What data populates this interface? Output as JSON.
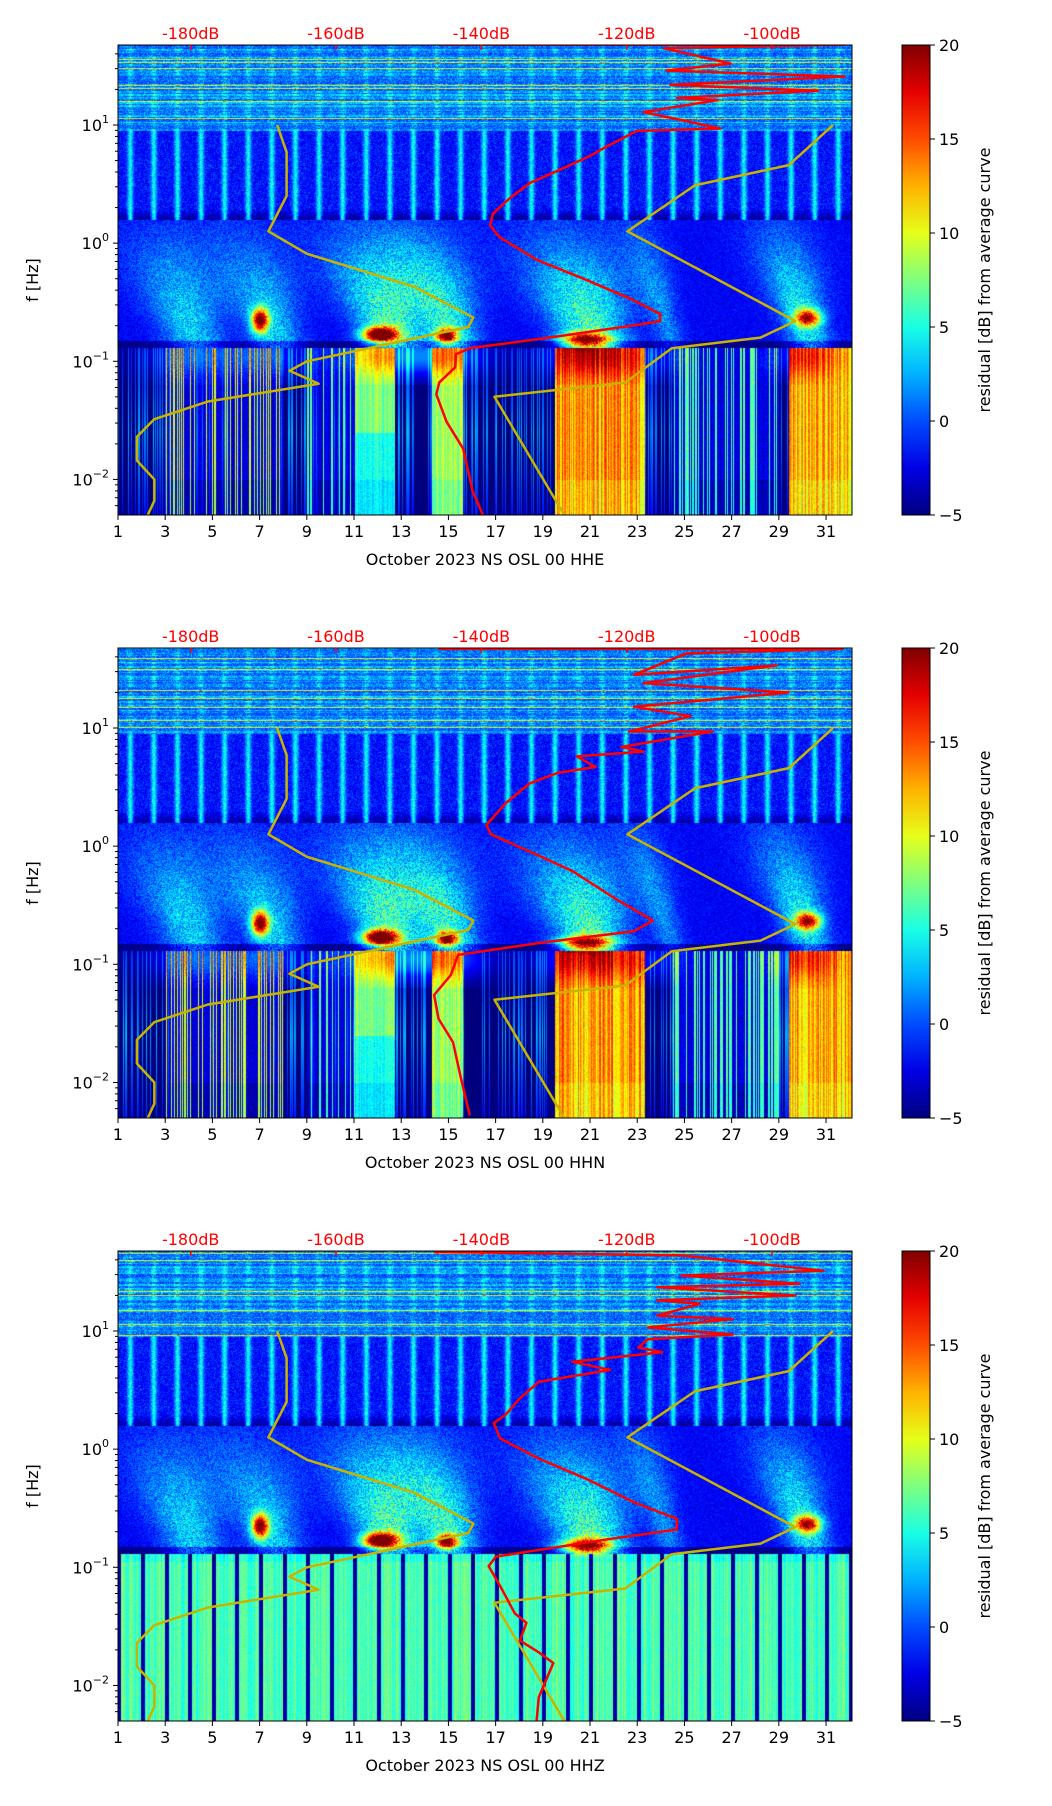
{
  "chart_data": [
    {
      "type": "heatmap",
      "title": "",
      "xlabel": "October 2023 NS OSL 00 HHE",
      "ylabel": "f [Hz]",
      "channel": "HHE",
      "x_ticks": [
        "1",
        "3",
        "5",
        "7",
        "9",
        "11",
        "13",
        "15",
        "17",
        "19",
        "21",
        "23",
        "25",
        "27",
        "29",
        "31"
      ],
      "xlim_days": [
        1,
        32.1
      ],
      "ylim_hz": [
        0.005,
        47.5
      ],
      "y_ticks": [
        {
          "base": "10",
          "exp": "1"
        },
        {
          "base": "10",
          "exp": "0"
        },
        {
          "base": "10",
          "exp": "−1"
        },
        {
          "base": "10",
          "exp": "−2"
        }
      ],
      "top_axis": {
        "ticks": [
          "-180dB",
          "-160dB",
          "-140dB",
          "-120dB",
          "-100dB"
        ],
        "values_db": [
          -180,
          -160,
          -140,
          -120,
          -100
        ],
        "range_db": [
          -190,
          -89
        ],
        "color": "#ff0000"
      },
      "colorbar": {
        "label": "residual [dB] from average curve",
        "range": [
          -5,
          20
        ],
        "ticks": [
          "20",
          "15",
          "10",
          "5",
          "0",
          "−5"
        ],
        "tick_values": [
          20,
          15,
          10,
          5,
          0,
          -5
        ],
        "colormap": "jet"
      },
      "red_curve_db_vs_log10f": [
        [
          -145.8,
          1.68
        ],
        [
          -90,
          1.68
        ],
        [
          -114.9,
          1.65
        ],
        [
          -105.7,
          1.52
        ],
        [
          -114.5,
          1.46
        ],
        [
          -90,
          1.41
        ],
        [
          -114.0,
          1.34
        ],
        [
          -93.7,
          1.29
        ],
        [
          -113.1,
          1.23
        ],
        [
          -107.5,
          1.21
        ],
        [
          -117.7,
          1.11
        ],
        [
          -107.1,
          0.97
        ],
        [
          -118.6,
          0.95
        ],
        [
          -122.7,
          0.82
        ],
        [
          -125.0,
          0.74
        ],
        [
          -129.6,
          0.61
        ],
        [
          -133.3,
          0.51
        ],
        [
          -136.1,
          0.38
        ],
        [
          -138.4,
          0.25
        ],
        [
          -138.8,
          0.15
        ],
        [
          -137.5,
          0.05
        ],
        [
          -132.4,
          -0.14
        ],
        [
          -126.0,
          -0.3
        ],
        [
          -119.5,
          -0.47
        ],
        [
          -115.4,
          -0.6
        ],
        [
          -115.4,
          -0.66
        ],
        [
          -119.5,
          -0.7
        ],
        [
          -129.6,
          -0.79
        ],
        [
          -141.6,
          -0.89
        ],
        [
          -143.5,
          -0.94
        ],
        [
          -143.6,
          -1.05
        ],
        [
          -145.8,
          -1.18
        ],
        [
          -146.2,
          -1.28
        ],
        [
          -144.8,
          -1.51
        ],
        [
          -142.5,
          -1.74
        ],
        [
          -141.2,
          -2.1
        ],
        [
          -139.8,
          -2.3
        ]
      ]
    },
    {
      "type": "heatmap",
      "title": "",
      "xlabel": "October 2023 NS OSL 00 HHN",
      "ylabel": "f [Hz]",
      "channel": "HHN",
      "x_ticks": [
        "1",
        "3",
        "5",
        "7",
        "9",
        "11",
        "13",
        "15",
        "17",
        "19",
        "21",
        "23",
        "25",
        "27",
        "29",
        "31"
      ],
      "xlim_days": [
        1,
        32.1
      ],
      "ylim_hz": [
        0.005,
        47.5
      ],
      "y_ticks": [
        {
          "base": "10",
          "exp": "1"
        },
        {
          "base": "10",
          "exp": "0"
        },
        {
          "base": "10",
          "exp": "−1"
        },
        {
          "base": "10",
          "exp": "−2"
        }
      ],
      "top_axis": {
        "ticks": [
          "-180dB",
          "-160dB",
          "-140dB",
          "-120dB",
          "-100dB"
        ],
        "values_db": [
          -180,
          -160,
          -140,
          -120,
          -100
        ],
        "range_db": [
          -190,
          -89
        ],
        "color": "#ff0000"
      },
      "colorbar": {
        "label": "residual [dB] from average curve",
        "range": [
          -5,
          20
        ],
        "ticks": [
          "20",
          "15",
          "10",
          "5",
          "0",
          "−5"
        ],
        "tick_values": [
          20,
          15,
          10,
          5,
          0,
          -5
        ],
        "colormap": "jet"
      },
      "red_curve_db_vs_log10f": [
        [
          -145.9,
          1.67
        ],
        [
          -90.3,
          1.67
        ],
        [
          -111.8,
          1.63
        ],
        [
          -119.0,
          1.45
        ],
        [
          -99.4,
          1.53
        ],
        [
          -117.7,
          1.38
        ],
        [
          -97.8,
          1.3
        ],
        [
          -119.0,
          1.18
        ],
        [
          -111.2,
          1.1
        ],
        [
          -119.7,
          0.97
        ],
        [
          -108.2,
          0.97
        ],
        [
          -120.7,
          0.84
        ],
        [
          -117.7,
          0.8
        ],
        [
          -126.9,
          0.76
        ],
        [
          -124.3,
          0.67
        ],
        [
          -129.5,
          0.62
        ],
        [
          -133.4,
          0.53
        ],
        [
          -136.7,
          0.36
        ],
        [
          -139.3,
          0.18
        ],
        [
          -138.7,
          0.1
        ],
        [
          -132.1,
          -0.08
        ],
        [
          -127.5,
          -0.21
        ],
        [
          -121.7,
          -0.44
        ],
        [
          -116.4,
          -0.63
        ],
        [
          -119.0,
          -0.72
        ],
        [
          -132.1,
          -0.82
        ],
        [
          -143.2,
          -0.92
        ],
        [
          -144.2,
          -1.09
        ],
        [
          -146.5,
          -1.26
        ],
        [
          -145.9,
          -1.46
        ],
        [
          -143.9,
          -1.66
        ],
        [
          -142.9,
          -1.94
        ],
        [
          -141.6,
          -2.28
        ]
      ]
    },
    {
      "type": "heatmap",
      "title": "",
      "xlabel": "October 2023 NS OSL 00 HHZ",
      "ylabel": "f [Hz]",
      "channel": "HHZ",
      "x_ticks": [
        "1",
        "3",
        "5",
        "7",
        "9",
        "11",
        "13",
        "15",
        "17",
        "19",
        "21",
        "23",
        "25",
        "27",
        "29",
        "31"
      ],
      "xlim_days": [
        1,
        32.1
      ],
      "ylim_hz": [
        0.005,
        47.5
      ],
      "y_ticks": [
        {
          "base": "10",
          "exp": "1"
        },
        {
          "base": "10",
          "exp": "0"
        },
        {
          "base": "10",
          "exp": "−1"
        },
        {
          "base": "10",
          "exp": "−2"
        }
      ],
      "top_axis": {
        "ticks": [
          "-180dB",
          "-160dB",
          "-140dB",
          "-120dB",
          "-100dB"
        ],
        "values_db": [
          -180,
          -160,
          -140,
          -120,
          -100
        ],
        "range_db": [
          -190,
          -89
        ],
        "color": "#ff0000"
      },
      "colorbar": {
        "label": "residual [dB] from average curve",
        "range": [
          -5,
          20
        ],
        "ticks": [
          "20",
          "15",
          "10",
          "5",
          "0",
          "−5"
        ],
        "tick_values": [
          20,
          15,
          10,
          5,
          0,
          -5
        ],
        "colormap": "jet"
      },
      "red_curve_db_vs_log10f": [
        [
          -146.5,
          1.67
        ],
        [
          -112.5,
          1.64
        ],
        [
          -92.9,
          1.51
        ],
        [
          -112.5,
          1.47
        ],
        [
          -96.2,
          1.4
        ],
        [
          -115.8,
          1.37
        ],
        [
          -96.8,
          1.3
        ],
        [
          -115.8,
          1.26
        ],
        [
          -109.9,
          1.23
        ],
        [
          -115.8,
          1.13
        ],
        [
          -105.4,
          1.1
        ],
        [
          -117.1,
          1.03
        ],
        [
          -105.4,
          0.97
        ],
        [
          -117.1,
          0.93
        ],
        [
          -118.4,
          0.86
        ],
        [
          -115.1,
          0.82
        ],
        [
          -127.5,
          0.74
        ],
        [
          -122.3,
          0.67
        ],
        [
          -132.1,
          0.57
        ],
        [
          -134.7,
          0.43
        ],
        [
          -136.7,
          0.29
        ],
        [
          -138.3,
          0.22
        ],
        [
          -137.4,
          0.09
        ],
        [
          -132.1,
          -0.08
        ],
        [
          -125.6,
          -0.25
        ],
        [
          -119.0,
          -0.45
        ],
        [
          -113.1,
          -0.59
        ],
        [
          -113.1,
          -0.68
        ],
        [
          -122.3,
          -0.76
        ],
        [
          -138.0,
          -0.91
        ],
        [
          -139.0,
          -0.99
        ],
        [
          -137.4,
          -1.16
        ],
        [
          -135.4,
          -1.39
        ],
        [
          -133.8,
          -1.47
        ],
        [
          -134.7,
          -1.62
        ],
        [
          -132.1,
          -1.72
        ],
        [
          -130.1,
          -1.81
        ],
        [
          -132.1,
          -2.1
        ],
        [
          -132.4,
          -2.3
        ]
      ]
    }
  ],
  "noise_models": {
    "color": "#c8b400",
    "low_model_db_vs_log10f": [
      [
        -168.1,
        1.0
      ],
      [
        -166.8,
        0.77
      ],
      [
        -166.8,
        0.4
      ],
      [
        -169.3,
        0.1
      ],
      [
        -164.0,
        -0.09
      ],
      [
        -149.2,
        -0.37
      ],
      [
        -141.1,
        -0.63
      ],
      [
        -141.8,
        -0.71
      ],
      [
        -164.0,
        -1.0
      ],
      [
        -166.4,
        -1.08
      ],
      [
        -162.4,
        -1.19
      ],
      [
        -177.6,
        -1.34
      ],
      [
        -185.0,
        -1.49
      ],
      [
        -187.4,
        -1.64
      ],
      [
        -187.4,
        -1.84
      ],
      [
        -185.0,
        -2.0
      ],
      [
        -185.0,
        -2.18
      ],
      [
        -185.9,
        -2.3
      ]
    ],
    "high_model_db_vs_log10f": [
      [
        -91.6,
        1.0
      ],
      [
        -97.7,
        0.66
      ],
      [
        -110.6,
        0.49
      ],
      [
        -119.9,
        0.1
      ],
      [
        -96.8,
        -0.66
      ],
      [
        -101.6,
        -0.8
      ],
      [
        -113.8,
        -0.89
      ],
      [
        -120.2,
        -1.18
      ],
      [
        -138.2,
        -1.3
      ],
      [
        -128.6,
        -2.3
      ]
    ]
  }
}
